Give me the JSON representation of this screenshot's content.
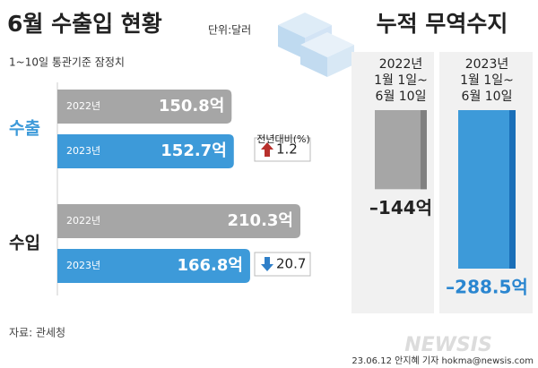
{
  "header": {
    "title": "6월 수출입 현황",
    "unit": "단위:달러",
    "note": "1~10일 통관기준 잠정치"
  },
  "chart_data": [
    {
      "type": "barh",
      "categories": [
        "수출",
        "수입"
      ],
      "category_colors": [
        "#3d9ad9",
        "#222222"
      ],
      "series": [
        {
          "name": "2022년",
          "color": "#a6a6a6",
          "values": [
            150.8,
            210.3
          ],
          "value_labels": [
            "150.8억",
            "210.3억"
          ]
        },
        {
          "name": "2023년",
          "color": "#3d9ad9",
          "values": [
            152.7,
            166.8
          ],
          "value_labels": [
            "152.7억",
            "166.8억"
          ]
        }
      ],
      "change_title": "전년대비(%)",
      "changes": [
        1.2,
        -20.7
      ],
      "change_labels": [
        "1.2",
        "20.7"
      ]
    },
    {
      "type": "column",
      "title": "누적 무역수지",
      "categories": [
        [
          "2022년",
          "1월 1일~",
          "6월 10일"
        ],
        [
          "2023년",
          "1월 1일~",
          "6월 10일"
        ]
      ],
      "values": [
        -144,
        -288.5
      ],
      "value_labels": [
        "–144억",
        "–288.5억"
      ],
      "colors": [
        "#a6a6a6",
        "#3d9ad9"
      ],
      "edge_colors": [
        "#808080",
        "#1a6fb8"
      ],
      "label_colors": [
        "#222222",
        "#2a86d0"
      ]
    }
  ],
  "source": "자료: 관세청",
  "credit": "23.06.12 안지혜 기자  hokma@newsis.com",
  "logo": "NEWSIS"
}
